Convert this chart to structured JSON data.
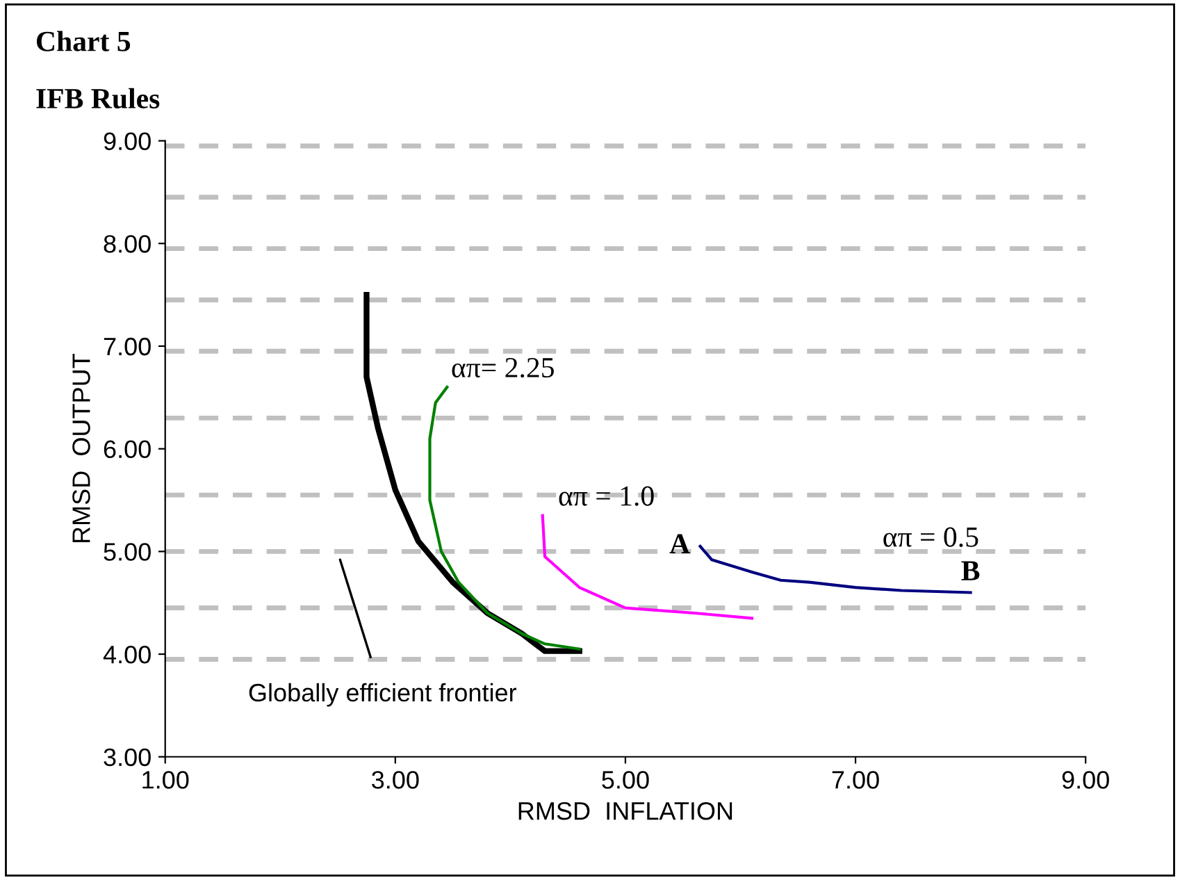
{
  "chart_data": {
    "type": "line",
    "title": "Chart 5",
    "subtitle": "IFB Rules",
    "xlabel": "RMSD  INFLATION",
    "ylabel": "RMSD  OUTPUT",
    "xlim": [
      1,
      9
    ],
    "ylim": [
      3,
      9
    ],
    "xticks": [
      {
        "value": 1,
        "label": "1.00"
      },
      {
        "value": 3,
        "label": "3.00"
      },
      {
        "value": 5,
        "label": "5.00"
      },
      {
        "value": 7,
        "label": "7.00"
      },
      {
        "value": 9,
        "label": "9.00"
      }
    ],
    "yticks": [
      {
        "value": 3,
        "label": "3.00"
      },
      {
        "value": 4,
        "label": "4.00"
      },
      {
        "value": 5,
        "label": "5.00"
      },
      {
        "value": 6,
        "label": "6.00"
      },
      {
        "value": 7,
        "label": "7.00"
      },
      {
        "value": 8,
        "label": "8.00"
      },
      {
        "value": 9,
        "label": "9.00"
      }
    ],
    "grid": false,
    "marker": "none",
    "line_style": "solid",
    "series": [
      {
        "color": "#000000",
        "x": [
          2.75,
          2.75,
          2.85,
          3.0,
          3.2,
          3.5,
          3.8,
          4.1,
          4.3,
          4.6
        ],
        "values": [
          7.5,
          6.7,
          6.2,
          5.6,
          5.1,
          4.7,
          4.4,
          4.2,
          4.03,
          4.03
        ]
      },
      {
        "color": "#008000",
        "x": [
          3.45,
          3.35,
          3.3,
          3.3,
          3.4,
          3.55,
          3.8,
          4.1,
          4.3,
          4.6
        ],
        "values": [
          6.6,
          6.45,
          6.1,
          5.5,
          5.0,
          4.7,
          4.4,
          4.2,
          4.1,
          4.05
        ]
      },
      {
        "color": "#ff00ff",
        "x": [
          4.28,
          4.3,
          4.6,
          5.0,
          5.6,
          6.1
        ],
        "values": [
          5.35,
          4.95,
          4.65,
          4.45,
          4.4,
          4.35
        ]
      },
      {
        "color": "#000080",
        "x": [
          5.65,
          5.75,
          6.1,
          6.35,
          6.6,
          7.0,
          7.4,
          8.0
        ],
        "values": [
          5.05,
          4.92,
          4.8,
          4.72,
          4.7,
          4.65,
          4.62,
          4.6
        ]
      }
    ],
    "ref_lines": [
      {
        "axis": "y",
        "value": 8.95,
        "color": "#c0c0c0",
        "line_style": "dashed"
      },
      {
        "axis": "y",
        "value": 8.45,
        "color": "#c0c0c0",
        "line_style": "dashed"
      },
      {
        "axis": "y",
        "value": 7.95,
        "color": "#c0c0c0",
        "line_style": "dashed"
      },
      {
        "axis": "y",
        "value": 7.45,
        "color": "#c0c0c0",
        "line_style": "dashed"
      },
      {
        "axis": "y",
        "value": 6.95,
        "color": "#c0c0c0",
        "line_style": "dashed"
      },
      {
        "axis": "y",
        "value": 6.3,
        "color": "#c0c0c0",
        "line_style": "dashed"
      },
      {
        "axis": "y",
        "value": 5.55,
        "color": "#c0c0c0",
        "line_style": "dashed"
      },
      {
        "axis": "y",
        "value": 5.0,
        "color": "#c0c0c0",
        "line_style": "dashed"
      },
      {
        "axis": "y",
        "value": 4.45,
        "color": "#c0c0c0",
        "line_style": "dashed"
      },
      {
        "axis": "y",
        "value": 3.95,
        "color": "#c0c0c0",
        "line_style": "dashed"
      }
    ],
    "annotations": [
      {
        "text": "απ= 2.25",
        "x": 3.45,
        "y": 6.6
      },
      {
        "text": "απ = 1.0",
        "x": 4.28,
        "y": 5.35
      },
      {
        "text": "A",
        "x": 5.65,
        "y": 5.05
      },
      {
        "text": "απ = 0.5",
        "x": 7.2,
        "y": 4.95
      },
      {
        "text": "B",
        "x": 7.95,
        "y": 4.6
      },
      "Globally efficient frontier"
    ]
  }
}
